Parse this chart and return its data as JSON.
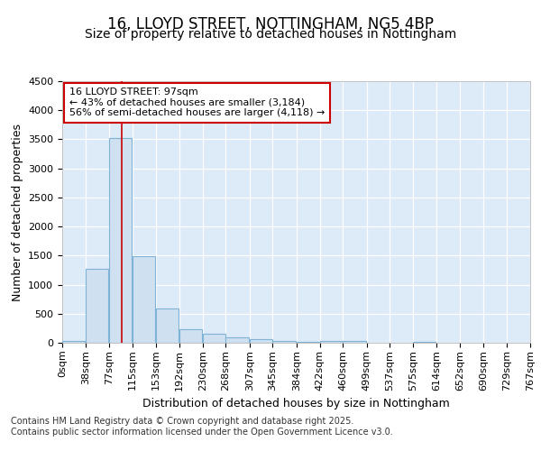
{
  "title1": "16, LLOYD STREET, NOTTINGHAM, NG5 4BP",
  "title2": "Size of property relative to detached houses in Nottingham",
  "xlabel": "Distribution of detached houses by size in Nottingham",
  "ylabel": "Number of detached properties",
  "bin_edges": [
    0,
    38,
    77,
    115,
    153,
    192,
    230,
    268,
    307,
    345,
    384,
    422,
    460,
    499,
    537,
    575,
    614,
    652,
    690,
    729,
    767
  ],
  "bin_labels": [
    "0sqm",
    "38sqm",
    "77sqm",
    "115sqm",
    "153sqm",
    "192sqm",
    "230sqm",
    "268sqm",
    "307sqm",
    "345sqm",
    "384sqm",
    "422sqm",
    "460sqm",
    "499sqm",
    "537sqm",
    "575sqm",
    "614sqm",
    "652sqm",
    "690sqm",
    "729sqm",
    "767sqm"
  ],
  "bar_heights": [
    30,
    1280,
    3520,
    1490,
    590,
    240,
    150,
    100,
    60,
    25,
    20,
    30,
    30,
    0,
    0,
    20,
    0,
    0,
    0,
    0,
    0
  ],
  "bar_color": "#cfe0f0",
  "bar_edge_color": "#7eb3d8",
  "vline_x": 97,
  "vline_color": "#cc0000",
  "ylim": [
    0,
    4500
  ],
  "yticks": [
    0,
    500,
    1000,
    1500,
    2000,
    2500,
    3000,
    3500,
    4000,
    4500
  ],
  "annotation_title": "16 LLOYD STREET: 97sqm",
  "annotation_line1": "← 43% of detached houses are smaller (3,184)",
  "annotation_line2": "56% of semi-detached houses are larger (4,118) →",
  "annotation_box_color": "#ffffff",
  "annotation_border_color": "#cc0000",
  "plot_bg_color": "#ddeaf7",
  "fig_bg_color": "#ffffff",
  "footer1": "Contains HM Land Registry data © Crown copyright and database right 2025.",
  "footer2": "Contains public sector information licensed under the Open Government Licence v3.0.",
  "title_fontsize": 12,
  "subtitle_fontsize": 10,
  "axis_label_fontsize": 9,
  "tick_fontsize": 8,
  "annotation_fontsize": 8,
  "footer_fontsize": 7
}
